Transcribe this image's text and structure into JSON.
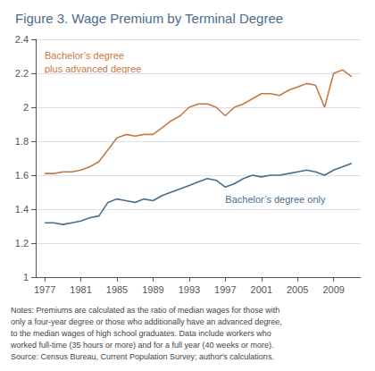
{
  "chart_data": {
    "type": "line",
    "title": "Figure 3. Wage Premium by Terminal Degree",
    "x": [
      1977,
      1978,
      1979,
      1980,
      1981,
      1982,
      1983,
      1984,
      1985,
      1986,
      1987,
      1988,
      1989,
      1990,
      1991,
      1992,
      1993,
      1994,
      1995,
      1996,
      1997,
      1998,
      1999,
      2000,
      2001,
      2002,
      2003,
      2004,
      2005,
      2006,
      2007,
      2008,
      2009,
      2010,
      2011
    ],
    "series": [
      {
        "name": "Bachelor’s degree\nplus advanced degree",
        "color": "#c87941",
        "values": [
          1.61,
          1.61,
          1.62,
          1.62,
          1.63,
          1.65,
          1.68,
          1.75,
          1.82,
          1.84,
          1.83,
          1.84,
          1.84,
          1.88,
          1.92,
          1.95,
          2.0,
          2.02,
          2.02,
          2.0,
          1.95,
          2.0,
          2.02,
          2.05,
          2.08,
          2.08,
          2.07,
          2.1,
          2.12,
          2.14,
          2.13,
          2.0,
          2.2,
          2.22,
          2.18
        ]
      },
      {
        "name": "Bachelor’s degree only",
        "color": "#4a6d8c",
        "values": [
          1.32,
          1.32,
          1.31,
          1.32,
          1.33,
          1.35,
          1.36,
          1.44,
          1.46,
          1.45,
          1.44,
          1.46,
          1.45,
          1.48,
          1.5,
          1.52,
          1.54,
          1.56,
          1.58,
          1.57,
          1.53,
          1.55,
          1.58,
          1.6,
          1.59,
          1.6,
          1.6,
          1.61,
          1.62,
          1.63,
          1.62,
          1.6,
          1.63,
          1.65,
          1.67
        ]
      }
    ],
    "xlim": [
      1976,
      2012
    ],
    "xticks": [
      1977,
      1981,
      1985,
      1989,
      1993,
      1997,
      2001,
      2005,
      2009
    ],
    "ylim": [
      1,
      2.4
    ],
    "yticks": [
      1,
      1.2,
      1.4,
      1.6,
      1.8,
      2,
      2.2,
      2.4
    ],
    "grid": true,
    "notes": [
      "Notes: Premiums are calculated as the ratio of median wages for those with",
      "only a four-year degree or those who additionally have an advanced degree,",
      "to the median wages of high school graduates. Data include workers who",
      "worked full-time (35 hours or more) and for a full year (40 weeks or more).",
      "Source: Census Bureau, Current Population Survey; author's calculations."
    ]
  }
}
